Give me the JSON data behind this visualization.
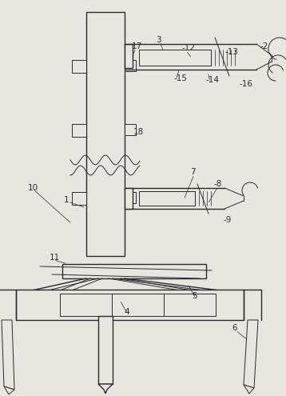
{
  "bg_color": "#e8e6df",
  "line_color": "#2a2a2a",
  "fig_width": 3.58,
  "fig_height": 4.95,
  "dpi": 100
}
